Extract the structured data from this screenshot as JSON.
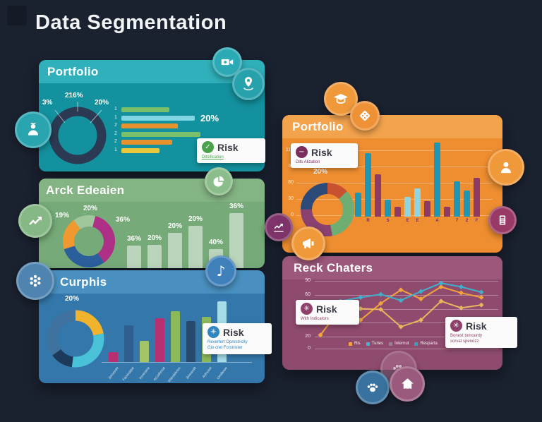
{
  "page": {
    "title": "Data Segmentation",
    "background": "#1a212f"
  },
  "icons": {
    "check": "✓",
    "minus": "−",
    "asterisk": "✳",
    "music_note": "♪"
  },
  "cards": {
    "teal": {
      "title": "Portfolio",
      "color": "#13919e",
      "header_color": "#2fb0ba",
      "risk": {
        "label": "Risk",
        "sub": "Ditsification"
      }
    },
    "green": {
      "title": "Arck Edeaien",
      "color": "#76aa78",
      "header_color": "#84b483"
    },
    "blue": {
      "title": "Curphis",
      "color": "#3478ab",
      "header_color": "#4990c0",
      "risk": {
        "label": "Risk",
        "sub1": "Revertert Oprestricity",
        "sub2": "Gio cret Forstrister"
      }
    },
    "orange": {
      "title": "Portfolio",
      "color": "#ee8e30",
      "header_color": "#f4a34d",
      "risk": {
        "label": "Risk",
        "sub": "Dits Alization"
      }
    },
    "purple": {
      "title": "Reck Chaters",
      "color": "#8f4b6d",
      "header_color": "#9c587a",
      "risk_left": {
        "label": "Risk",
        "sub": "With Indicators"
      },
      "risk_right": {
        "label": "Risk",
        "sub1": "Bonest tomounty",
        "sub2": "sorvat spenozz"
      }
    }
  },
  "floating_icons": [
    {
      "name": "video-camera-icon",
      "color": "#2ba9b4"
    },
    {
      "name": "map-pin-icon",
      "color": "#27a2ad"
    },
    {
      "name": "person-award-icon",
      "color": "#2aa5b0"
    },
    {
      "name": "pie-chart-icon",
      "color": "#8bbd8b"
    },
    {
      "name": "trend-up-icon",
      "color": "#85b885"
    },
    {
      "name": "music-note-icon",
      "color": "#3f80ba"
    },
    {
      "name": "flower-cluster-icon",
      "color": "#4e84af"
    },
    {
      "name": "graduation-cap-icon",
      "color": "#f0993a"
    },
    {
      "name": "dice-icon",
      "color": "#ef9136"
    },
    {
      "name": "user-icon",
      "color": "#f0993a"
    },
    {
      "name": "calculator-icon",
      "color": "#993a66"
    },
    {
      "name": "line-chart-icon",
      "color": "#7e3468"
    },
    {
      "name": "megaphone-icon",
      "color": "#f0993a"
    },
    {
      "name": "paw-print-faded-icon",
      "color": "#a4688a"
    },
    {
      "name": "paw-print-icon",
      "color": "#39729e"
    },
    {
      "name": "home-icon",
      "color": "#9a5a7d"
    }
  ],
  "chart_data": [
    {
      "id": "teal-donut",
      "type": "pie",
      "donut": true,
      "segments": [
        {
          "value": 100,
          "color": "#2b3a52"
        }
      ],
      "labels": [
        "3%",
        "216%",
        "20%"
      ]
    },
    {
      "id": "teal-hbar",
      "type": "bar",
      "orientation": "horizontal",
      "rows": [
        {
          "label": "1",
          "value": 68,
          "color": "#7cbf6b"
        },
        {
          "label": "1",
          "value": 104,
          "color": "#80d6e4",
          "annotation": "20%"
        },
        {
          "label": "2",
          "value": 80,
          "color": "#e8922e"
        },
        {
          "label": "2",
          "value": 112,
          "color": "#7cbf6b"
        },
        {
          "label": "2",
          "value": 72,
          "color": "#e8922e"
        },
        {
          "label": "1",
          "value": 54,
          "color": "#e9c83e"
        }
      ]
    },
    {
      "id": "green-donut",
      "type": "pie",
      "donut": true,
      "segments": [
        {
          "value": 4,
          "color": "#9fc79b"
        },
        {
          "value": 36,
          "color": "#ae2f86"
        },
        {
          "value": 30,
          "color": "#2b5f9b"
        },
        {
          "value": 20,
          "color": "#f0992e"
        },
        {
          "value": 10,
          "color": "#9fc79b"
        }
      ],
      "labels": [
        "19%",
        "20%",
        "36%"
      ]
    },
    {
      "id": "green-bars",
      "type": "bar",
      "color": "rgba(255,255,255,0.5)",
      "values": [
        32,
        33,
        50,
        60,
        27,
        78
      ],
      "value_labels": [
        "36%",
        "20%",
        "20%",
        "20%",
        "40%",
        "36%"
      ]
    },
    {
      "id": "blue-donut",
      "type": "pie",
      "donut": true,
      "segments": [
        {
          "value": 22,
          "color": "#f2b32c"
        },
        {
          "value": 30,
          "color": "#49c2d8"
        },
        {
          "value": 13,
          "color": "#1e3a5a"
        },
        {
          "value": 35,
          "color": "#3f729f"
        }
      ],
      "labels": [
        "20%"
      ]
    },
    {
      "id": "blue-bars",
      "type": "bar",
      "values": [
        14,
        52,
        30,
        62,
        72,
        58,
        64,
        86
      ],
      "colors": [
        "#b62f70",
        "#2e5f8e",
        "#a3c464",
        "#b62f70",
        "#8cba5a",
        "#27496e",
        "#8cba5a",
        "#a5dce8"
      ],
      "categories": [
        "Jenverde",
        "Famsoldat",
        "Inverseta",
        "Accidentat",
        "Wandatvion",
        "Jinwamlit",
        "Arinvast",
        "Umdlewe"
      ]
    },
    {
      "id": "orange-donut",
      "type": "pie",
      "donut": true,
      "segments": [
        {
          "value": 13,
          "color": "#c8512f"
        },
        {
          "value": 34,
          "color": "#6fae72"
        },
        {
          "value": 28,
          "color": "#8a4170"
        },
        {
          "value": 25,
          "color": "#2c4a78"
        }
      ],
      "labels": [
        "20%"
      ]
    },
    {
      "id": "orange-bars",
      "type": "bar",
      "values": [
        34,
        90,
        60,
        24,
        14,
        28,
        40,
        22,
        105,
        14,
        50,
        37,
        55
      ],
      "colors": [
        "#1f96b4",
        "#1f96b4",
        "#8e3a66",
        "#1f96b4",
        "#8e3a66",
        "#8fd4de",
        "#8fd4de",
        "#8e3a66",
        "#1f96b4",
        "#8e3a66",
        "#1f96b4",
        "#1f96b4",
        "#8e3a66"
      ],
      "y_ticks": [
        "110",
        "30",
        "80",
        "30",
        "0"
      ],
      "x_labels": [
        "R",
        "S",
        "E",
        "E",
        "A",
        "7",
        "2",
        "F"
      ],
      "x_label_idx": [
        1,
        3,
        5,
        6,
        8,
        10,
        11,
        12
      ]
    },
    {
      "id": "purple-line",
      "type": "line",
      "y_ticks": [
        "90",
        "60",
        "50",
        "20",
        "20",
        "0"
      ],
      "series": [
        {
          "name": "Ris",
          "color": "#f2a33c",
          "points": [
            [
              0,
              18
            ],
            [
              1,
              53
            ],
            [
              2,
              38
            ],
            [
              3,
              60
            ],
            [
              4,
              78
            ],
            [
              5,
              66
            ],
            [
              6,
              82
            ],
            [
              7,
              74
            ],
            [
              8,
              68
            ]
          ]
        },
        {
          "name": "Resparta",
          "color": "#e9b55e",
          "points": [
            [
              2,
              53
            ],
            [
              3,
              52
            ],
            [
              4,
              29
            ],
            [
              5,
              38
            ],
            [
              6,
              63
            ],
            [
              7,
              54
            ],
            [
              8,
              58
            ]
          ]
        },
        {
          "name": "Turies",
          "color": "#3fb0cc",
          "points": [
            [
              1,
              63
            ],
            [
              2,
              68
            ],
            [
              3,
              72
            ],
            [
              4,
              64
            ],
            [
              5,
              76
            ],
            [
              6,
              87
            ],
            [
              7,
              82
            ],
            [
              8,
              75
            ]
          ]
        }
      ],
      "legend": [
        {
          "label": "Ris",
          "color": "#f2a33c"
        },
        {
          "label": "Turies",
          "color": "#3fb5c9"
        },
        {
          "label": "Internut",
          "color": "#918391"
        },
        {
          "label": "Resparta",
          "color": "#35a0b8"
        }
      ]
    }
  ]
}
